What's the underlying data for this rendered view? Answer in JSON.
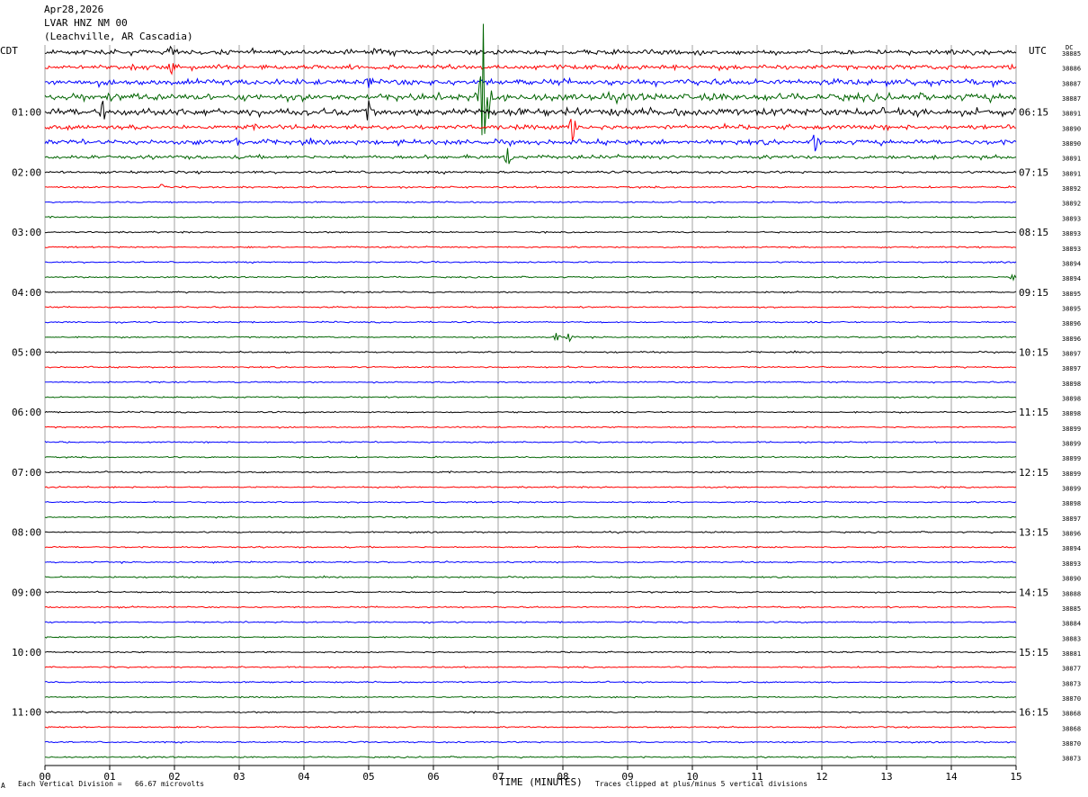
{
  "header": {
    "date": "Apr28,2026",
    "station": "LVAR HNZ NM 00",
    "location": "(Leachville, AR Cascadia)"
  },
  "left_timezone": "CDT",
  "right_timezone": "UTC",
  "dc_label": "DC",
  "footer": {
    "scale": "Each Vertical Division =   66.67 microvolts",
    "clip_note": "Traces clipped at plus/minus 5 vertical divisions",
    "corner_mark": "A"
  },
  "chart_data": {
    "type": "line",
    "title": "",
    "xlabel": "TIME (MINUTES)",
    "ylabel": "",
    "xlim": [
      0,
      15
    ],
    "x_ticks": [
      "00",
      "01",
      "02",
      "03",
      "04",
      "05",
      "06",
      "07",
      "08",
      "09",
      "10",
      "11",
      "12",
      "13",
      "14",
      "15"
    ],
    "trace_colors": [
      "#000000",
      "#ff0000",
      "#0000ff",
      "#006400"
    ],
    "left_hour_labels": [
      "01:00",
      "02:00",
      "03:00",
      "04:00",
      "05:00",
      "06:00",
      "07:00",
      "08:00",
      "09:00",
      "10:00",
      "11:00"
    ],
    "right_hour_labels": [
      "06:15",
      "07:15",
      "08:15",
      "09:15",
      "10:15",
      "11:15",
      "12:15",
      "13:15",
      "14:15",
      "15:15",
      "16:15"
    ],
    "dc_offsets": [
      38885,
      38886,
      38887,
      38887,
      38891,
      38890,
      38890,
      38891,
      38891,
      38892,
      38892,
      38893,
      38893,
      38893,
      38894,
      38894,
      38895,
      38895,
      38896,
      38896,
      38897,
      38897,
      38898,
      38898,
      38898,
      38899,
      38899,
      38899,
      38899,
      38899,
      38898,
      38897,
      38896,
      38894,
      38893,
      38890,
      38888,
      38885,
      38884,
      38883,
      38881,
      38877,
      38873,
      38870,
      38868,
      38868,
      38870,
      38873
    ],
    "trace_amplitude": [
      4,
      4,
      5,
      6,
      6,
      4,
      4,
      3,
      2,
      1.5,
      1.2,
      1.2,
      1.2,
      1.2,
      1.2,
      1.2,
      1.2,
      1.2,
      1.2,
      1.2,
      1.2,
      1.2,
      1.2,
      1.2,
      1.2,
      1.2,
      1.2,
      1.2,
      1.2,
      1.2,
      1.2,
      1.2,
      1.2,
      1.2,
      1.2,
      1.2,
      1.2,
      1.2,
      1.2,
      1.2,
      1.2,
      1.2,
      1.2,
      1.2,
      1.2,
      1.2,
      1.2,
      1.2
    ],
    "events": [
      {
        "trace": 0,
        "minute": 1.95,
        "amplitude": 8
      },
      {
        "trace": 1,
        "minute": 1.95,
        "amplitude": 10
      },
      {
        "trace": 2,
        "minute": 5.0,
        "amplitude": 10
      },
      {
        "trace": 3,
        "minute": 6.77,
        "amplitude": 80
      },
      {
        "trace": 3,
        "minute": 6.85,
        "amplitude": 20
      },
      {
        "trace": 4,
        "minute": 0.9,
        "amplitude": 14
      },
      {
        "trace": 4,
        "minute": 5.0,
        "amplitude": 12
      },
      {
        "trace": 5,
        "minute": 8.15,
        "amplitude": 18
      },
      {
        "trace": 6,
        "minute": 11.9,
        "amplitude": 14
      },
      {
        "trace": 6,
        "minute": 2.95,
        "amplitude": 6
      },
      {
        "trace": 7,
        "minute": 7.15,
        "amplitude": 12
      },
      {
        "trace": 9,
        "minute": 1.8,
        "amplitude": 4
      },
      {
        "trace": 15,
        "minute": 14.95,
        "amplitude": 4
      },
      {
        "trace": 19,
        "minute": 7.9,
        "amplitude": 5
      },
      {
        "trace": 19,
        "minute": 8.1,
        "amplitude": 5
      }
    ]
  }
}
